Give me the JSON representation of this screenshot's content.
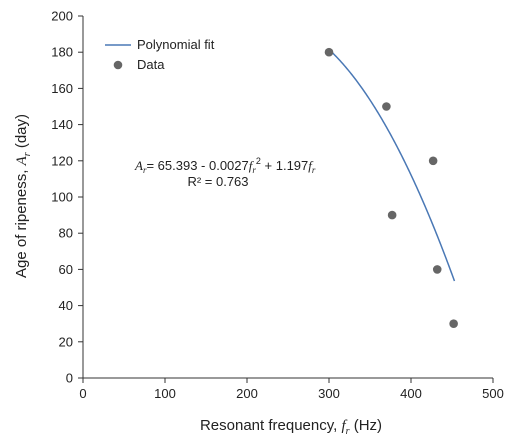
{
  "chart_data": {
    "type": "scatter",
    "title": "",
    "xlabel": "Resonant frequency, f_r (Hz)",
    "xlabel_parts": {
      "pre": "Resonant frequency, ",
      "sym": "f",
      "sub": "r",
      "post": " (Hz)"
    },
    "ylabel": "Age of ripeness, A_r (day)",
    "ylabel_parts": {
      "pre": "Age of ripeness, ",
      "sym": "A",
      "sub": "r",
      "post": " (day)"
    },
    "xlim": [
      0,
      500
    ],
    "ylim": [
      0,
      200
    ],
    "x_ticks": [
      "0",
      "100",
      "200",
      "300",
      "400",
      "500"
    ],
    "y_ticks": [
      "0",
      "20",
      "40",
      "60",
      "80",
      "100",
      "120",
      "140",
      "160",
      "180",
      "200"
    ],
    "grid": false,
    "legend_position": "top-left",
    "series": [
      {
        "name": "Data",
        "type": "scatter",
        "color": "#666666",
        "points": [
          {
            "x": 300,
            "y": 180
          },
          {
            "x": 370,
            "y": 150
          },
          {
            "x": 377,
            "y": 90
          },
          {
            "x": 427,
            "y": 120
          },
          {
            "x": 432,
            "y": 60
          },
          {
            "x": 452,
            "y": 30
          }
        ]
      },
      {
        "name": "Polynomial fit",
        "type": "line",
        "color": "#4a78b5",
        "coefficients": {
          "intercept": 65.393,
          "quadratic": -0.0027,
          "linear": 1.197
        },
        "x_range": [
          300,
          453
        ]
      }
    ],
    "annotation": {
      "equation": {
        "lhs_sym": "A",
        "lhs_sub": "r",
        "part1": "= 65.393 - 0.0027",
        "sym2": "f",
        "sub2": "r",
        "sup2": "2",
        "part2": " + 1.197",
        "sym3": "f",
        "sub3": "r"
      },
      "r_squared": "R² = 0.763"
    }
  }
}
